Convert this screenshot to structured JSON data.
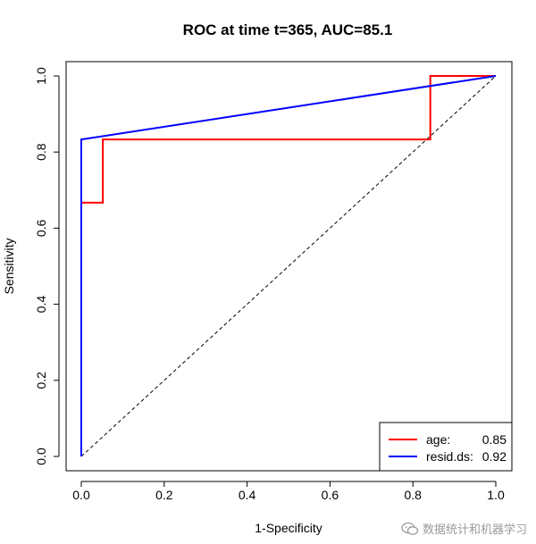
{
  "chart_data": {
    "type": "line",
    "title": "ROC at time t=365, AUC=85.1",
    "xlabel": "1-Specificity",
    "ylabel": "Sensitivity",
    "xlim": [
      0,
      1
    ],
    "ylim": [
      0,
      1
    ],
    "xticks": [
      "0.0",
      "0.2",
      "0.4",
      "0.6",
      "0.8",
      "1.0"
    ],
    "yticks": [
      "0.0",
      "0.2",
      "0.4",
      "0.6",
      "0.8",
      "1.0"
    ],
    "reference_line": {
      "x": [
        0,
        1
      ],
      "y": [
        0,
        1
      ],
      "style": "dashed",
      "color": "#000000"
    },
    "series": [
      {
        "name": "age",
        "color": "#ff0000",
        "legend_label": "age:",
        "legend_value": "0.85",
        "x": [
          0,
          0,
          0.052,
          0.052,
          0.842,
          0.842,
          1.0
        ],
        "y": [
          0,
          0.667,
          0.667,
          0.833,
          0.833,
          1.0,
          1.0
        ]
      },
      {
        "name": "resid.ds",
        "color": "#0000ff",
        "legend_label": "resid.ds:",
        "legend_value": "0.92",
        "x": [
          0,
          0,
          1.0
        ],
        "y": [
          0,
          0.833,
          1.0
        ]
      }
    ],
    "legend_position": "bottom-right"
  },
  "watermark": {
    "icon": "wechat-icon",
    "text": "数据统计和机器学习"
  }
}
